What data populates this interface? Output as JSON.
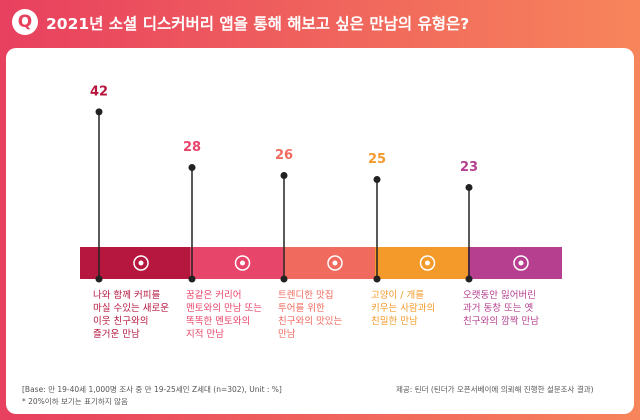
{
  "chart_data": {
    "type": "lollipop",
    "title": "2021년 소셜 디스커버리 앱을 통해 해보고 싶은 만남의 유형은?",
    "logo": "Q",
    "categories": [
      "나와 함께 커피를\n마실 수있는 새로운\n이웃 친구와의\n즐거운 만남",
      "꿈같은 커리어\n멘토와의 만남 또는\n똑똑한 멘토와의\n지적 만남",
      "트렌디한 맛집\n투어를 위한\n친구와의 맛있는\n만남",
      "고양이 / 개를\n키우는 사람과의\n친밀한 만남",
      "오랫동안 잃어버린\n과거 동창 또는 옛\n친구와의 깜짝 만남"
    ],
    "values": [
      42,
      28,
      26,
      25,
      23
    ],
    "colors": [
      "#b5173f",
      "#e8456a",
      "#f06a5e",
      "#f39a2b",
      "#b6408f"
    ],
    "base_note": "[Base: 만 19-40세 1,000명 조사 중 만 19-25세인 Z세대 (n=302), Unit : %]",
    "footnote": "* 20%이하 보기는 표기하지 않음",
    "source": "제공: 틴더 (틴더가 오픈서베이에 의뢰해 진행한 설문조사 결과)"
  }
}
